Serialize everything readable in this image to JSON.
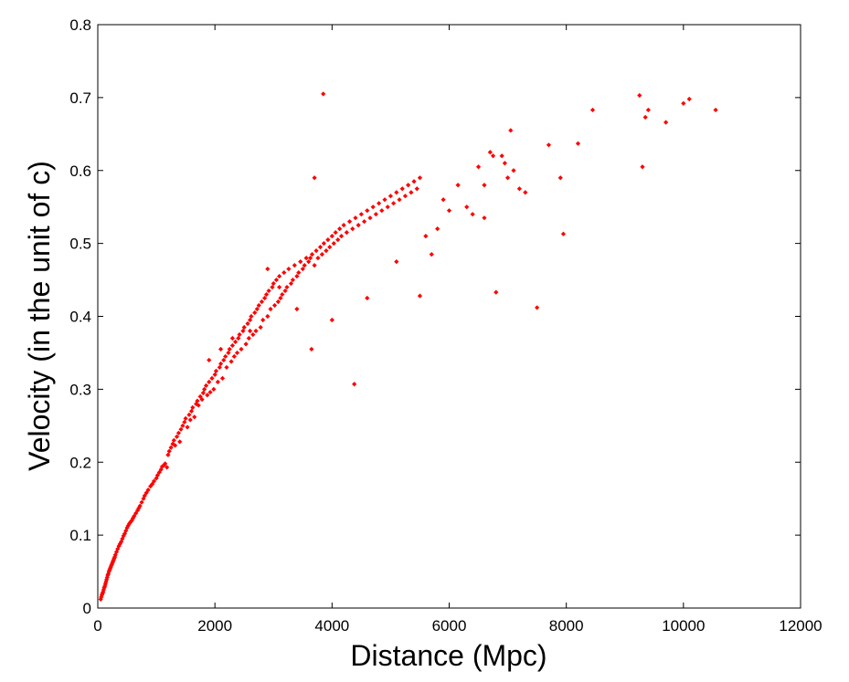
{
  "chart_data": {
    "type": "scatter",
    "title": "",
    "xlabel": "Distance (Mpc)",
    "ylabel": "Velocity (in the unit of c)",
    "xlim": [
      0,
      12000
    ],
    "ylim": [
      0,
      0.8
    ],
    "xticks": [
      0,
      2000,
      4000,
      6000,
      8000,
      10000,
      12000
    ],
    "yticks": [
      0,
      0.1,
      0.2,
      0.3,
      0.4,
      0.5,
      0.6,
      0.7,
      0.8
    ],
    "xtick_labels": [
      "0",
      "2000",
      "4000",
      "6000",
      "8000",
      "10000",
      "12000"
    ],
    "ytick_labels": [
      "0",
      "0.1",
      "0.2",
      "0.3",
      "0.4",
      "0.5",
      "0.6",
      "0.7",
      "0.8"
    ],
    "grid": false,
    "marker_color": "#ff0000",
    "series": [
      {
        "x": [
          50,
          60,
          70,
          80,
          90,
          100,
          110,
          120,
          130,
          140,
          150,
          160,
          170,
          180,
          190,
          200,
          210,
          220,
          230,
          240,
          250,
          260,
          270,
          280,
          290,
          300,
          320,
          340,
          360,
          380,
          400,
          420,
          440,
          460,
          480,
          500,
          520,
          540,
          560,
          580,
          600,
          620,
          650,
          680,
          700,
          720,
          750,
          780,
          800,
          830,
          860,
          900,
          930,
          960,
          1000,
          1020,
          1050,
          1080,
          1100,
          1130,
          1150,
          1180,
          1200,
          1220,
          1250,
          1280,
          1300,
          1320,
          1350,
          1380,
          1400,
          1420,
          1450,
          1480,
          1500,
          1530,
          1560,
          1580,
          1600,
          1620,
          1650,
          1680,
          1700,
          1720,
          1750,
          1780,
          1800,
          1820,
          1850,
          1870,
          1900,
          1920,
          1950,
          1980,
          2000,
          2020,
          2050,
          2080,
          2100,
          2130,
          2150,
          2180,
          2200,
          2230,
          2250,
          2280,
          2300,
          2330,
          2350,
          2380,
          2400,
          2420,
          2450,
          2480,
          2500,
          2530,
          2560,
          2580,
          2600,
          2620,
          2650,
          2680,
          2700,
          2720,
          2750,
          2780,
          2800,
          2820,
          2850,
          2880,
          2900,
          2920,
          2950,
          2980,
          3000,
          3020,
          3050,
          3080,
          3100,
          3120,
          3150,
          3180,
          3200,
          3230,
          3260,
          3300,
          3330,
          3360,
          3400,
          3430,
          3460,
          3500,
          3530,
          3560,
          3600,
          3630,
          3660,
          3700,
          3730,
          3760,
          3800,
          3830,
          3860,
          3900,
          3930,
          3960,
          4000,
          4030,
          4060,
          4100,
          4130,
          4160,
          4200,
          4250,
          4300,
          4350,
          4400,
          4450,
          4500,
          4550,
          4600,
          4650,
          4700,
          4750,
          4800,
          4850,
          4900,
          4950,
          5000,
          5050,
          5100,
          5150,
          5200,
          5250,
          5300,
          5350,
          5400,
          5450,
          5500,
          1900,
          2100,
          2300,
          2600,
          2900,
          3100,
          3400,
          3650,
          3700,
          3850,
          4000,
          4380,
          4600,
          5100,
          5500,
          5900,
          6300,
          6600,
          6800,
          7000,
          6400,
          6700,
          7100,
          7200,
          7300,
          6900,
          7500,
          7700,
          7900,
          7950,
          8200,
          8450,
          9250,
          9300,
          9350,
          9400,
          9700,
          10000,
          10100,
          10550,
          5600,
          5700,
          5800,
          6000,
          6150,
          6500,
          6600,
          6750,
          6950,
          7050
        ],
        "y": [
          0.012,
          0.015,
          0.018,
          0.02,
          0.022,
          0.025,
          0.028,
          0.03,
          0.033,
          0.036,
          0.039,
          0.042,
          0.045,
          0.047,
          0.05,
          0.052,
          0.054,
          0.056,
          0.058,
          0.06,
          0.062,
          0.064,
          0.066,
          0.068,
          0.07,
          0.073,
          0.077,
          0.081,
          0.085,
          0.088,
          0.091,
          0.095,
          0.099,
          0.102,
          0.106,
          0.11,
          0.113,
          0.116,
          0.118,
          0.12,
          0.123,
          0.126,
          0.13,
          0.134,
          0.137,
          0.14,
          0.145,
          0.15,
          0.154,
          0.158,
          0.162,
          0.167,
          0.17,
          0.174,
          0.178,
          0.182,
          0.186,
          0.19,
          0.194,
          0.196,
          0.198,
          0.193,
          0.21,
          0.215,
          0.22,
          0.225,
          0.23,
          0.223,
          0.235,
          0.24,
          0.228,
          0.245,
          0.25,
          0.255,
          0.26,
          0.248,
          0.265,
          0.258,
          0.27,
          0.275,
          0.262,
          0.28,
          0.284,
          0.278,
          0.29,
          0.286,
          0.295,
          0.3,
          0.305,
          0.292,
          0.31,
          0.296,
          0.315,
          0.3,
          0.32,
          0.325,
          0.31,
          0.33,
          0.335,
          0.315,
          0.34,
          0.345,
          0.33,
          0.35,
          0.355,
          0.338,
          0.36,
          0.345,
          0.365,
          0.35,
          0.37,
          0.375,
          0.355,
          0.38,
          0.385,
          0.362,
          0.39,
          0.37,
          0.395,
          0.4,
          0.375,
          0.405,
          0.38,
          0.41,
          0.415,
          0.385,
          0.42,
          0.395,
          0.425,
          0.43,
          0.4,
          0.435,
          0.41,
          0.44,
          0.445,
          0.415,
          0.45,
          0.42,
          0.455,
          0.425,
          0.43,
          0.46,
          0.435,
          0.44,
          0.465,
          0.445,
          0.45,
          0.47,
          0.455,
          0.46,
          0.475,
          0.465,
          0.47,
          0.48,
          0.475,
          0.48,
          0.485,
          0.47,
          0.49,
          0.48,
          0.495,
          0.485,
          0.5,
          0.49,
          0.505,
          0.495,
          0.51,
          0.5,
          0.515,
          0.505,
          0.52,
          0.51,
          0.525,
          0.515,
          0.53,
          0.52,
          0.535,
          0.525,
          0.54,
          0.53,
          0.545,
          0.535,
          0.55,
          0.54,
          0.555,
          0.545,
          0.56,
          0.55,
          0.565,
          0.555,
          0.57,
          0.56,
          0.575,
          0.565,
          0.58,
          0.57,
          0.585,
          0.575,
          0.59,
          0.34,
          0.355,
          0.37,
          0.38,
          0.465,
          0.44,
          0.41,
          0.355,
          0.59,
          0.705,
          0.395,
          0.307,
          0.425,
          0.475,
          0.428,
          0.56,
          0.55,
          0.58,
          0.433,
          0.59,
          0.54,
          0.625,
          0.6,
          0.575,
          0.57,
          0.62,
          0.412,
          0.635,
          0.59,
          0.513,
          0.637,
          0.683,
          0.703,
          0.605,
          0.673,
          0.683,
          0.666,
          0.692,
          0.698,
          0.683,
          0.51,
          0.485,
          0.52,
          0.545,
          0.58,
          0.605,
          0.535,
          0.62,
          0.61,
          0.655
        ]
      }
    ]
  }
}
